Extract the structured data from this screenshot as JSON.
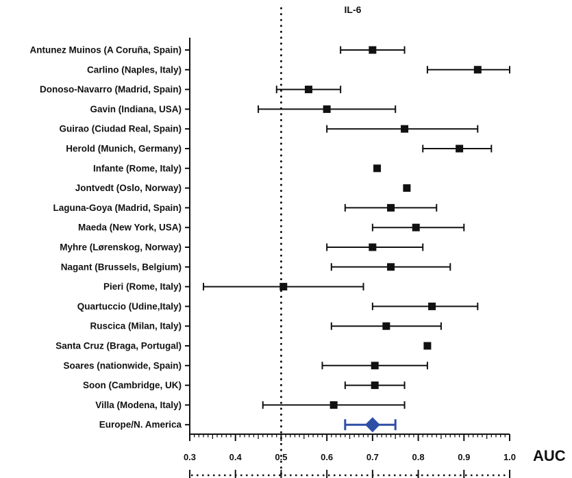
{
  "chart_data": {
    "type": "forest",
    "title": "IL-6",
    "xlabel": "AUC",
    "xlim": [
      0.3,
      1.0
    ],
    "xticks": [
      "0.3",
      "0.4",
      "0.5",
      "0.6",
      "0.7",
      "0.8",
      "0.9",
      "1.0"
    ],
    "reference_line": 0.5,
    "studies": [
      {
        "label": "Antunez Muinos (A Coruña, Spain)",
        "auc": 0.7,
        "low": 0.63,
        "high": 0.77
      },
      {
        "label": "Carlino (Naples, Italy)",
        "auc": 0.93,
        "low": 0.82,
        "high": 1.0
      },
      {
        "label": "Donoso-Navarro (Madrid, Spain)",
        "auc": 0.56,
        "low": 0.49,
        "high": 0.63
      },
      {
        "label": "Gavin (Indiana, USA)",
        "auc": 0.6,
        "low": 0.45,
        "high": 0.75
      },
      {
        "label": "Guirao (Ciudad Real, Spain)",
        "auc": 0.77,
        "low": 0.6,
        "high": 0.93
      },
      {
        "label": "Herold (Munich, Germany)",
        "auc": 0.89,
        "low": 0.81,
        "high": 0.96
      },
      {
        "label": "Infante (Rome, Italy)",
        "auc": 0.71,
        "low": null,
        "high": null
      },
      {
        "label": "Jontvedt (Oslo, Norway)",
        "auc": 0.775,
        "low": null,
        "high": null
      },
      {
        "label": "Laguna-Goya (Madrid, Spain)",
        "auc": 0.74,
        "low": 0.64,
        "high": 0.84
      },
      {
        "label": "Maeda (New York, USA)",
        "auc": 0.795,
        "low": 0.7,
        "high": 0.9
      },
      {
        "label": "Myhre (Lørenskog, Norway)",
        "auc": 0.7,
        "low": 0.6,
        "high": 0.81
      },
      {
        "label": "Nagant (Brussels, Belgium)",
        "auc": 0.74,
        "low": 0.61,
        "high": 0.87
      },
      {
        "label": "Pieri (Rome, Italy)",
        "auc": 0.505,
        "low": 0.33,
        "high": 0.68
      },
      {
        "label": "Quartuccio (Udine,Italy)",
        "auc": 0.83,
        "low": 0.7,
        "high": 0.93
      },
      {
        "label": "Ruscica (Milan, Italy)",
        "auc": 0.73,
        "low": 0.61,
        "high": 0.85
      },
      {
        "label": "Santa Cruz (Braga, Portugal)",
        "auc": 0.82,
        "low": null,
        "high": null
      },
      {
        "label": "Soares (nationwide, Spain)",
        "auc": 0.705,
        "low": 0.59,
        "high": 0.82
      },
      {
        "label": "Soon (Cambridge, UK)",
        "auc": 0.705,
        "low": 0.64,
        "high": 0.77
      },
      {
        "label": "Villa (Modena, Italy)",
        "auc": 0.615,
        "low": 0.46,
        "high": 0.77
      }
    ],
    "pooled": {
      "label": "Europe/N. America",
      "auc": 0.7,
      "low": 0.64,
      "high": 0.75
    },
    "colors": {
      "study": "#111111",
      "pooled": "#2e4fa5",
      "axis": "#111111"
    }
  }
}
